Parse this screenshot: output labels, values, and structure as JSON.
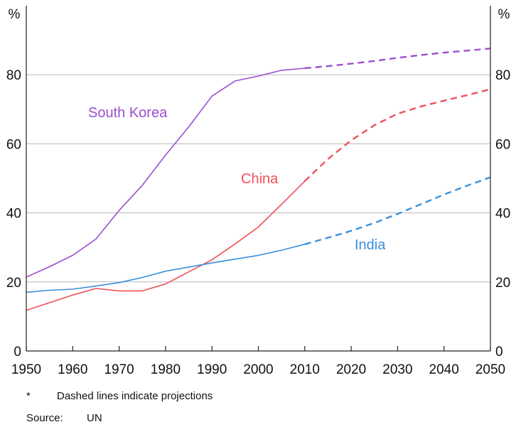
{
  "chart_data": {
    "type": "line",
    "ylim": [
      0,
      100
    ],
    "xlim": [
      1950,
      2050
    ],
    "x_ticks": [
      1950,
      1960,
      1970,
      1980,
      1990,
      2000,
      2010,
      2020,
      2030,
      2040,
      2050
    ],
    "y_ticks": [
      0,
      20,
      40,
      60,
      80
    ],
    "y_unit_left": "%",
    "y_unit_right": "%",
    "grid": "horizontal",
    "series": [
      {
        "name": "South Korea",
        "color": "#9b4fd0",
        "actual": [
          [
            1950,
            21.4
          ],
          [
            1955,
            24.4
          ],
          [
            1960,
            27.7
          ],
          [
            1965,
            32.4
          ],
          [
            1970,
            40.7
          ],
          [
            1975,
            48.0
          ],
          [
            1980,
            56.7
          ],
          [
            1985,
            64.9
          ],
          [
            1990,
            73.8
          ],
          [
            1995,
            78.2
          ],
          [
            2000,
            79.6
          ],
          [
            2005,
            81.3
          ],
          [
            2010,
            81.9
          ]
        ],
        "projection": [
          [
            2010,
            81.9
          ],
          [
            2015,
            82.5
          ],
          [
            2020,
            83.2
          ],
          [
            2025,
            84.0
          ],
          [
            2030,
            84.9
          ],
          [
            2035,
            85.7
          ],
          [
            2040,
            86.4
          ],
          [
            2045,
            87.0
          ],
          [
            2050,
            87.6
          ]
        ]
      },
      {
        "name": "China",
        "color": "#f0505a",
        "actual": [
          [
            1950,
            11.8
          ],
          [
            1955,
            14.0
          ],
          [
            1960,
            16.2
          ],
          [
            1965,
            18.1
          ],
          [
            1970,
            17.4
          ],
          [
            1975,
            17.4
          ],
          [
            1980,
            19.4
          ],
          [
            1985,
            22.9
          ],
          [
            1990,
            26.4
          ],
          [
            1995,
            31.0
          ],
          [
            2000,
            35.9
          ],
          [
            2005,
            42.5
          ],
          [
            2010,
            49.2
          ]
        ],
        "projection": [
          [
            2010,
            49.2
          ],
          [
            2015,
            55.6
          ],
          [
            2020,
            61.0
          ],
          [
            2025,
            65.4
          ],
          [
            2030,
            68.7
          ],
          [
            2035,
            70.8
          ],
          [
            2040,
            72.5
          ],
          [
            2045,
            74.1
          ],
          [
            2050,
            75.8
          ]
        ]
      },
      {
        "name": "India",
        "color": "#3a8fdc",
        "actual": [
          [
            1950,
            17.0
          ],
          [
            1955,
            17.6
          ],
          [
            1960,
            17.9
          ],
          [
            1965,
            18.8
          ],
          [
            1970,
            19.8
          ],
          [
            1975,
            21.3
          ],
          [
            1980,
            23.1
          ],
          [
            1985,
            24.3
          ],
          [
            1990,
            25.5
          ],
          [
            1995,
            26.6
          ],
          [
            2000,
            27.7
          ],
          [
            2005,
            29.2
          ],
          [
            2010,
            30.9
          ]
        ],
        "projection": [
          [
            2010,
            30.9
          ],
          [
            2015,
            32.8
          ],
          [
            2020,
            34.8
          ],
          [
            2025,
            37.1
          ],
          [
            2030,
            39.7
          ],
          [
            2035,
            42.5
          ],
          [
            2040,
            45.3
          ],
          [
            2045,
            47.9
          ],
          [
            2050,
            50.3
          ]
        ]
      }
    ],
    "labels": {
      "south_korea": "South Korea",
      "china": "China",
      "india": "India"
    }
  },
  "footnote": {
    "marker": "*",
    "text": "Dashed lines indicate projections"
  },
  "source": {
    "label": "Source:",
    "text": "UN"
  }
}
